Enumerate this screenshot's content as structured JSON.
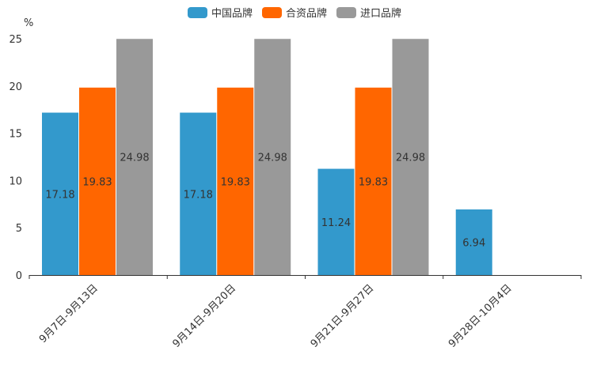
{
  "chart_data": {
    "type": "bar",
    "ylabel": "%",
    "ylim": [
      0,
      25
    ],
    "yticks": [
      0,
      5,
      10,
      15,
      20,
      25
    ],
    "categories": [
      "9月7日-9月13日",
      "9月14日-9月20日",
      "9月21日-9月27日",
      "9月28日-10月4日"
    ],
    "series": [
      {
        "name": "中国品牌",
        "color": "#3399cc",
        "values": [
          17.18,
          17.18,
          11.24,
          6.94
        ]
      },
      {
        "name": "合资品牌",
        "color": "#ff6600",
        "values": [
          19.83,
          19.83,
          19.83,
          null
        ]
      },
      {
        "name": "进口品牌",
        "color": "#999999",
        "values": [
          24.98,
          24.98,
          24.98,
          null
        ]
      }
    ],
    "legend_position": "top-center"
  }
}
